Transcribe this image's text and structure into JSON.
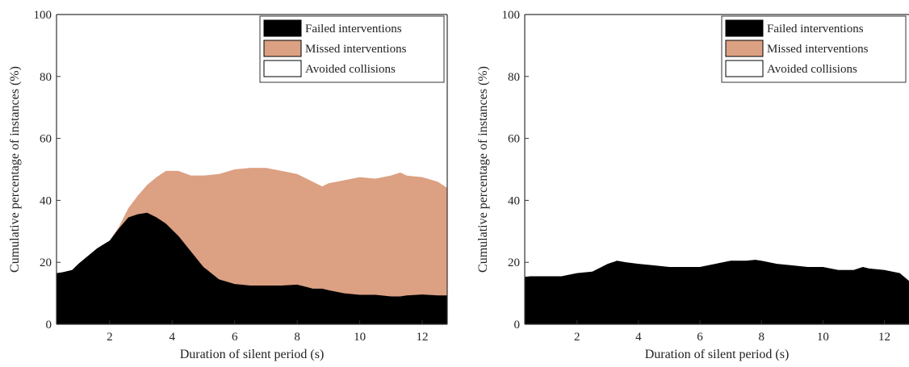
{
  "colors": {
    "failed": "#000000",
    "missed": "#dca082",
    "avoided": "#ffffff",
    "axis": "#333333"
  },
  "chart_data": [
    {
      "type": "area",
      "stacked": true,
      "title": "",
      "xlabel": "Duration of silent period (s)",
      "ylabel": "Cumulative percentage of instances (%)",
      "xlim": [
        0.3,
        12.8
      ],
      "ylim": [
        0,
        100
      ],
      "xticks": [
        2,
        4,
        6,
        8,
        10,
        12
      ],
      "yticks": [
        0,
        20,
        40,
        60,
        80,
        100
      ],
      "legend": [
        "Failed interventions",
        "Missed interventions",
        "Avoided collisions"
      ],
      "legend_position": "top-right",
      "x": [
        0.3,
        0.5,
        0.8,
        1.0,
        1.3,
        1.6,
        2.0,
        2.3,
        2.6,
        2.9,
        3.2,
        3.5,
        3.8,
        4.2,
        4.6,
        5.0,
        5.5,
        6.0,
        6.5,
        7.0,
        7.5,
        8.0,
        8.5,
        8.8,
        9.0,
        9.5,
        10.0,
        10.5,
        11.0,
        11.3,
        11.5,
        12.0,
        12.5,
        12.8
      ],
      "series": [
        {
          "name": "Failed interventions",
          "values": [
            16.5,
            16.8,
            17.5,
            19.5,
            22,
            24.5,
            27,
            31,
            34.5,
            35.5,
            36,
            34.5,
            32.5,
            28.5,
            23.5,
            18.5,
            14.5,
            13,
            12.5,
            12.5,
            12.5,
            12.8,
            11.5,
            11.5,
            11,
            10,
            9.5,
            9.5,
            9,
            9,
            9.3,
            9.6,
            9.3,
            9.3
          ]
        },
        {
          "name": "Missed interventions",
          "values": [
            16.5,
            16.8,
            17.5,
            19.5,
            22,
            24.5,
            27,
            31.5,
            37.5,
            41.5,
            45,
            47.5,
            49.5,
            49.5,
            48,
            48,
            48.5,
            50,
            50.5,
            50.5,
            49.5,
            48.5,
            46,
            44.5,
            45.5,
            46.5,
            47.5,
            47,
            48,
            49,
            48,
            47.5,
            46,
            44
          ]
        },
        {
          "name": "Avoided collisions",
          "values": [
            100,
            100,
            100,
            100,
            100,
            100,
            100,
            100,
            100,
            100,
            100,
            100,
            100,
            100,
            100,
            100,
            100,
            100,
            100,
            100,
            100,
            100,
            100,
            100,
            100,
            100,
            100,
            100,
            100,
            100,
            100,
            100,
            100,
            100
          ]
        }
      ]
    },
    {
      "type": "area",
      "stacked": true,
      "title": "",
      "xlabel": "Duration of silent period (s)",
      "ylabel": "Cumulative percentage of instances (%)",
      "xlim": [
        0.3,
        12.8
      ],
      "ylim": [
        0,
        100
      ],
      "xticks": [
        2,
        4,
        6,
        8,
        10,
        12
      ],
      "yticks": [
        0,
        20,
        40,
        60,
        80,
        100
      ],
      "legend": [
        "Failed interventions",
        "Missed interventions",
        "Avoided collisions"
      ],
      "legend_position": "top-right",
      "x": [
        0.3,
        0.5,
        1.0,
        1.5,
        2.0,
        2.5,
        3.0,
        3.3,
        3.6,
        4.0,
        4.5,
        5.0,
        5.5,
        6.0,
        6.5,
        7.0,
        7.5,
        7.8,
        8.0,
        8.5,
        9.0,
        9.5,
        10.0,
        10.5,
        11.0,
        11.3,
        11.5,
        12.0,
        12.5,
        12.8
      ],
      "series": [
        {
          "name": "Failed interventions",
          "values": [
            15.3,
            15.5,
            15.5,
            15.5,
            16.5,
            17,
            19.5,
            20.5,
            20,
            19.5,
            19,
            18.5,
            18.5,
            18.5,
            19.5,
            20.5,
            20.5,
            20.8,
            20.5,
            19.5,
            19,
            18.5,
            18.5,
            17.5,
            17.5,
            18.5,
            18,
            17.5,
            16.5,
            14
          ]
        },
        {
          "name": "Missed interventions",
          "values": [
            15.3,
            15.5,
            15.5,
            15.5,
            16.5,
            17,
            19.5,
            20.5,
            20,
            19.5,
            19,
            18.5,
            18.5,
            18.5,
            19.5,
            20.5,
            20.5,
            20.8,
            20.5,
            19.5,
            19,
            18.5,
            18.5,
            17.5,
            17.5,
            18.5,
            18,
            17.5,
            16.5,
            14
          ]
        },
        {
          "name": "Avoided collisions",
          "values": [
            100,
            100,
            100,
            100,
            100,
            100,
            100,
            100,
            100,
            100,
            100,
            100,
            100,
            100,
            100,
            100,
            100,
            100,
            100,
            100,
            100,
            100,
            100,
            100,
            100,
            100,
            100,
            100,
            100,
            100
          ]
        }
      ]
    }
  ]
}
